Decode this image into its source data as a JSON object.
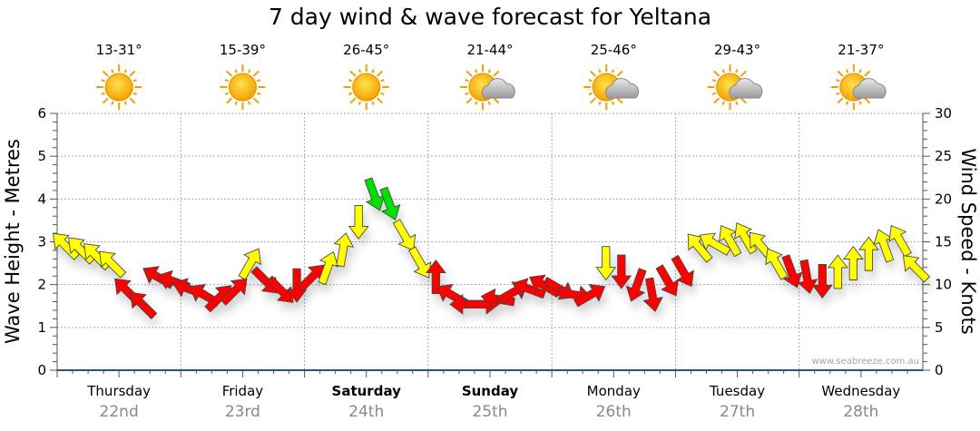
{
  "title": "7 day wind & wave forecast for Yeltana",
  "watermark": "www.seabreeze.com.au",
  "colors": {
    "red": "#ff0000",
    "yellow": "#ffff00",
    "green": "#00e000",
    "axis": "#1a5a8a"
  },
  "chart_data": {
    "type": "scatter",
    "title": "7 day wind & wave forecast for Yeltana",
    "ylabel": "Wave Height - Metres",
    "y2label": "Wind Speed - Knots",
    "ylim": [
      0,
      6
    ],
    "y2lim": [
      0,
      30
    ],
    "yticks": [
      "0",
      "1",
      "2",
      "3",
      "4",
      "5",
      "6"
    ],
    "y2ticks": [
      "0",
      "5",
      "10",
      "15",
      "20",
      "25",
      "30"
    ],
    "grid": true,
    "days": [
      {
        "day": "Thursday",
        "date": "22nd",
        "temp": "13-31°",
        "icon": "sun",
        "bold": false
      },
      {
        "day": "Friday",
        "date": "23rd",
        "temp": "15-39°",
        "icon": "sun",
        "bold": false
      },
      {
        "day": "Saturday",
        "date": "24th",
        "temp": "26-45°",
        "icon": "sun",
        "bold": true
      },
      {
        "day": "Sunday",
        "date": "25th",
        "temp": "21-44°",
        "icon": "sun-cloud",
        "bold": true
      },
      {
        "day": "Monday",
        "date": "26th",
        "temp": "25-46°",
        "icon": "sun-cloud",
        "bold": false
      },
      {
        "day": "Tuesday",
        "date": "27th",
        "temp": "29-43°",
        "icon": "sun-cloud",
        "bold": false
      },
      {
        "day": "Wednesday",
        "date": "28th",
        "temp": "21-37°",
        "icon": "sun-cloud",
        "bold": false
      }
    ],
    "wind_series_note": "3-hourly wind speed (knots), arrow direction (degrees, 0=up), colour code",
    "wind": [
      [
        14.6,
        315,
        "Y"
      ],
      [
        14.1,
        315,
        "Y"
      ],
      [
        13.4,
        315,
        "Y"
      ],
      [
        12.5,
        315,
        "Y"
      ],
      [
        9.3,
        315,
        "R"
      ],
      [
        7.7,
        315,
        "R"
      ],
      [
        10.9,
        300,
        "R"
      ],
      [
        10.4,
        290,
        "R"
      ],
      [
        9.5,
        290,
        "R"
      ],
      [
        8.8,
        300,
        "R"
      ],
      [
        8.5,
        45,
        "R"
      ],
      [
        9.3,
        45,
        "R"
      ],
      [
        12.5,
        30,
        "Y"
      ],
      [
        10.4,
        135,
        "R"
      ],
      [
        9.3,
        135,
        "R"
      ],
      [
        9.9,
        180,
        "R"
      ],
      [
        10.9,
        45,
        "R"
      ],
      [
        12.0,
        20,
        "Y"
      ],
      [
        14.1,
        10,
        "Y"
      ],
      [
        17.3,
        180,
        "Y"
      ],
      [
        20.5,
        160,
        "G"
      ],
      [
        19.4,
        160,
        "G"
      ],
      [
        15.7,
        150,
        "Y"
      ],
      [
        12.5,
        150,
        "Y"
      ],
      [
        10.9,
        0,
        "R"
      ],
      [
        8.8,
        300,
        "R"
      ],
      [
        7.7,
        270,
        "R"
      ],
      [
        7.7,
        90,
        "R"
      ],
      [
        8.3,
        280,
        "R"
      ],
      [
        9.1,
        60,
        "R"
      ],
      [
        9.5,
        290,
        "R"
      ],
      [
        9.9,
        300,
        "R"
      ],
      [
        9.5,
        120,
        "R"
      ],
      [
        8.8,
        100,
        "R"
      ],
      [
        8.8,
        60,
        "R"
      ],
      [
        12.5,
        180,
        "Y"
      ],
      [
        11.5,
        180,
        "R"
      ],
      [
        9.9,
        200,
        "R"
      ],
      [
        8.8,
        170,
        "R"
      ],
      [
        10.4,
        150,
        "R"
      ],
      [
        11.5,
        150,
        "R"
      ],
      [
        14.4,
        320,
        "Y"
      ],
      [
        14.8,
        300,
        "Y"
      ],
      [
        15.2,
        330,
        "Y"
      ],
      [
        15.5,
        330,
        "Y"
      ],
      [
        14.6,
        320,
        "Y"
      ],
      [
        12.5,
        330,
        "Y"
      ],
      [
        11.5,
        160,
        "R"
      ],
      [
        10.9,
        170,
        "R"
      ],
      [
        10.4,
        180,
        "R"
      ],
      [
        11.5,
        0,
        "Y"
      ],
      [
        12.5,
        0,
        "Y"
      ],
      [
        13.6,
        0,
        "Y"
      ],
      [
        14.6,
        340,
        "Y"
      ],
      [
        15.2,
        330,
        "Y"
      ],
      [
        12.0,
        315,
        "Y"
      ]
    ]
  }
}
